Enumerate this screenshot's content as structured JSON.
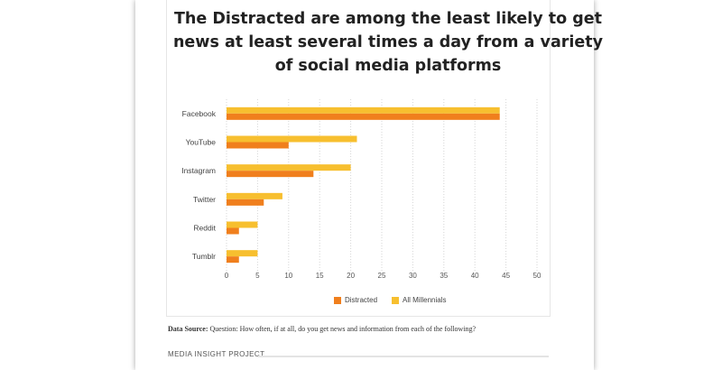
{
  "chart_data": {
    "type": "bar",
    "orientation": "horizontal",
    "title": "The Distracted are among the least likely to get news at least several times a day from a variety of social media platforms",
    "categories": [
      "Facebook",
      "YouTube",
      "Instagram",
      "Twitter",
      "Reddit",
      "Tumblr"
    ],
    "series": [
      {
        "name": "All Millennials",
        "color": "#f7bf2f",
        "values": [
          44,
          21,
          20,
          9,
          5,
          5
        ]
      },
      {
        "name": "Distracted",
        "color": "#f07f1d",
        "values": [
          44,
          10,
          14,
          6,
          2,
          2
        ]
      }
    ],
    "xlim": [
      0,
      50
    ],
    "x_ticks": [
      0,
      5,
      10,
      15,
      20,
      25,
      30,
      35,
      40,
      45,
      50
    ],
    "grid": "vertical-dotted",
    "legend": {
      "position": "bottom-center",
      "order": [
        "Distracted",
        "All Millennials"
      ]
    }
  },
  "source": {
    "label": "Data Source:",
    "text": " Question: How often, if at all, do you get news and information from each of the following?"
  },
  "footer": {
    "label": "MEDIA INSIGHT PROJECT"
  }
}
